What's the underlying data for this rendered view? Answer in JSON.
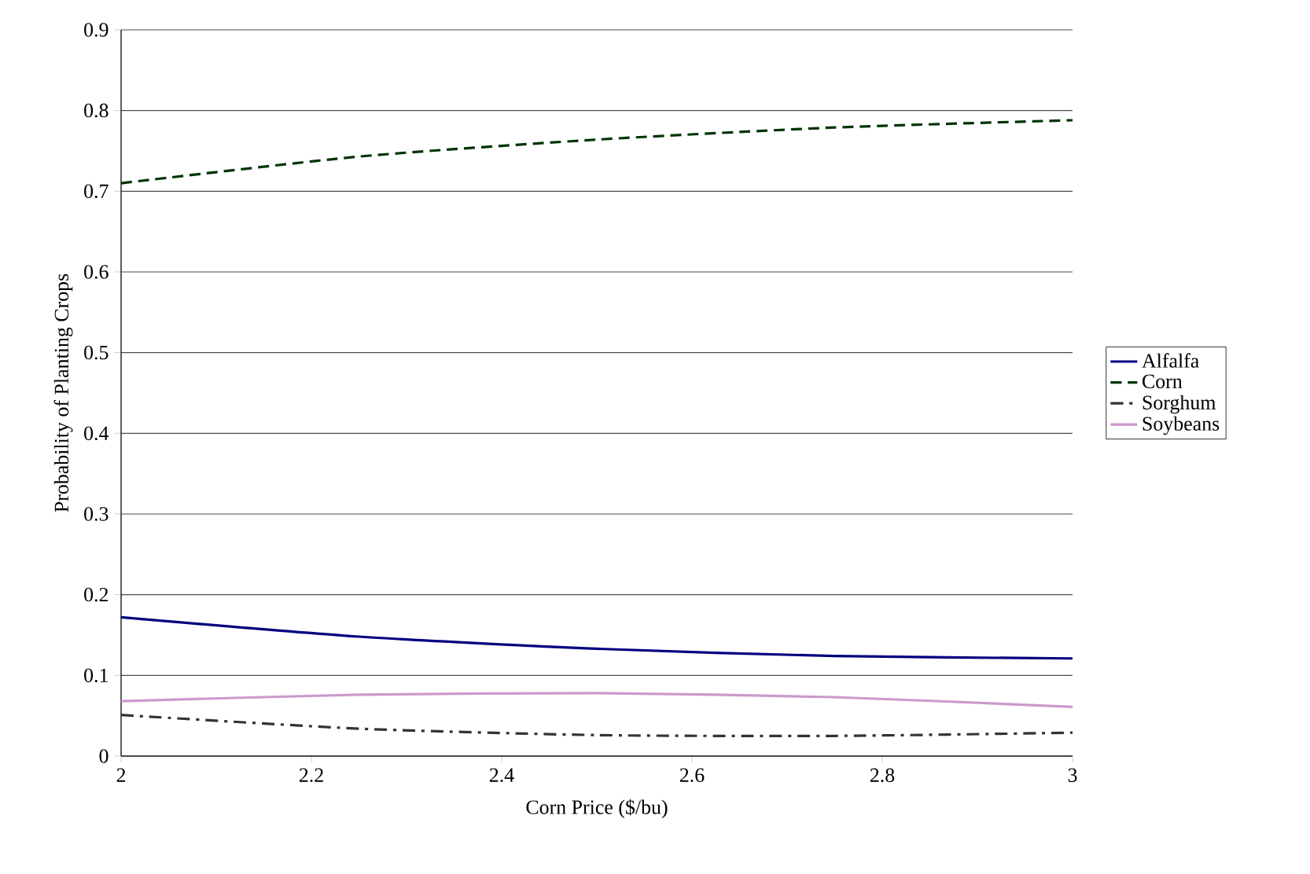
{
  "chart_data": {
    "type": "line",
    "xlabel": "Corn Price ($/bu)",
    "ylabel": "Probability of Planting Crops",
    "x": [
      2,
      2.25,
      2.5,
      2.75,
      3
    ],
    "series": [
      {
        "name": "Alfalfa",
        "color": "#000080",
        "line_style": "solid",
        "values": [
          0.172,
          0.148,
          0.133,
          0.124,
          0.121
        ]
      },
      {
        "name": "Corn",
        "color": "#003300",
        "line_style": "dashed",
        "values": [
          0.71,
          0.743,
          0.764,
          0.779,
          0.788
        ]
      },
      {
        "name": "Sorghum",
        "color": "#333333",
        "line_style": "dashdot",
        "values": [
          0.051,
          0.034,
          0.026,
          0.025,
          0.029
        ]
      },
      {
        "name": "Soybeans",
        "color": "#cc99cc",
        "line_style": "solid",
        "values": [
          0.068,
          0.076,
          0.078,
          0.073,
          0.061
        ]
      }
    ],
    "xlim": [
      2,
      3
    ],
    "xticks": [
      2,
      2.2,
      2.4,
      2.6,
      2.8,
      3
    ],
    "ylim": [
      0,
      0.9
    ],
    "yticks": [
      0,
      0.1,
      0.2,
      0.3,
      0.4,
      0.5,
      0.6,
      0.7,
      0.8,
      0.9
    ],
    "grid": "y",
    "legend": "right",
    "marker": "none"
  }
}
